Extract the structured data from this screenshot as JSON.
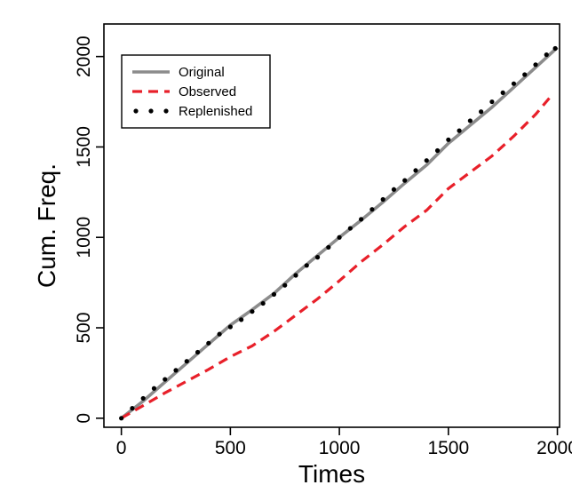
{
  "chart_data": {
    "type": "line",
    "title": "",
    "xlabel": "Times",
    "ylabel": "Cum. Freq.",
    "xlim": [
      -80,
      2010
    ],
    "ylim": [
      -50,
      2180
    ],
    "xticks": [
      0,
      500,
      1000,
      1500,
      2000
    ],
    "yticks": [
      0,
      500,
      1000,
      1500,
      2000
    ],
    "x_tick_labels": [
      "0",
      "500",
      "1000",
      "1500",
      "2000"
    ],
    "y_tick_labels": [
      "0",
      "500",
      "1000",
      "1500",
      "2000"
    ],
    "grid": false,
    "legend_position": "top-left",
    "series": [
      {
        "name": "Original",
        "style": "solid",
        "color": "#8c8c8c",
        "x": [
          0,
          100,
          200,
          300,
          400,
          500,
          600,
          700,
          800,
          900,
          1000,
          1100,
          1200,
          1300,
          1400,
          1500,
          1600,
          1700,
          1800,
          1900,
          2000
        ],
        "y": [
          0,
          95,
          200,
          305,
          410,
          515,
          600,
          690,
          800,
          900,
          1000,
          1095,
          1195,
          1300,
          1400,
          1520,
          1620,
          1720,
          1830,
          1940,
          2050
        ]
      },
      {
        "name": "Observed",
        "style": "dashed",
        "color": "#e8202a",
        "x": [
          0,
          100,
          200,
          300,
          400,
          500,
          600,
          700,
          800,
          900,
          1000,
          1100,
          1200,
          1300,
          1400,
          1500,
          1600,
          1700,
          1800,
          1900,
          1970
        ],
        "y": [
          0,
          70,
          140,
          205,
          270,
          340,
          400,
          480,
          570,
          660,
          760,
          865,
          960,
          1060,
          1150,
          1270,
          1360,
          1450,
          1560,
          1680,
          1780
        ]
      },
      {
        "name": "Replenished",
        "style": "dotted",
        "color": "#000000",
        "x": [
          0,
          50,
          100,
          150,
          200,
          250,
          300,
          350,
          400,
          450,
          500,
          550,
          600,
          650,
          700,
          750,
          800,
          850,
          900,
          950,
          1000,
          1050,
          1100,
          1150,
          1200,
          1250,
          1300,
          1350,
          1400,
          1450,
          1500,
          1550,
          1600,
          1650,
          1700,
          1750,
          1800,
          1850,
          1900,
          1950,
          1990
        ],
        "y": [
          0,
          55,
          110,
          165,
          215,
          265,
          315,
          365,
          415,
          465,
          505,
          545,
          590,
          635,
          685,
          735,
          790,
          845,
          890,
          945,
          1000,
          1050,
          1100,
          1155,
          1210,
          1265,
          1315,
          1370,
          1425,
          1480,
          1540,
          1590,
          1645,
          1695,
          1750,
          1800,
          1850,
          1900,
          1955,
          2010,
          2045
        ]
      }
    ]
  }
}
